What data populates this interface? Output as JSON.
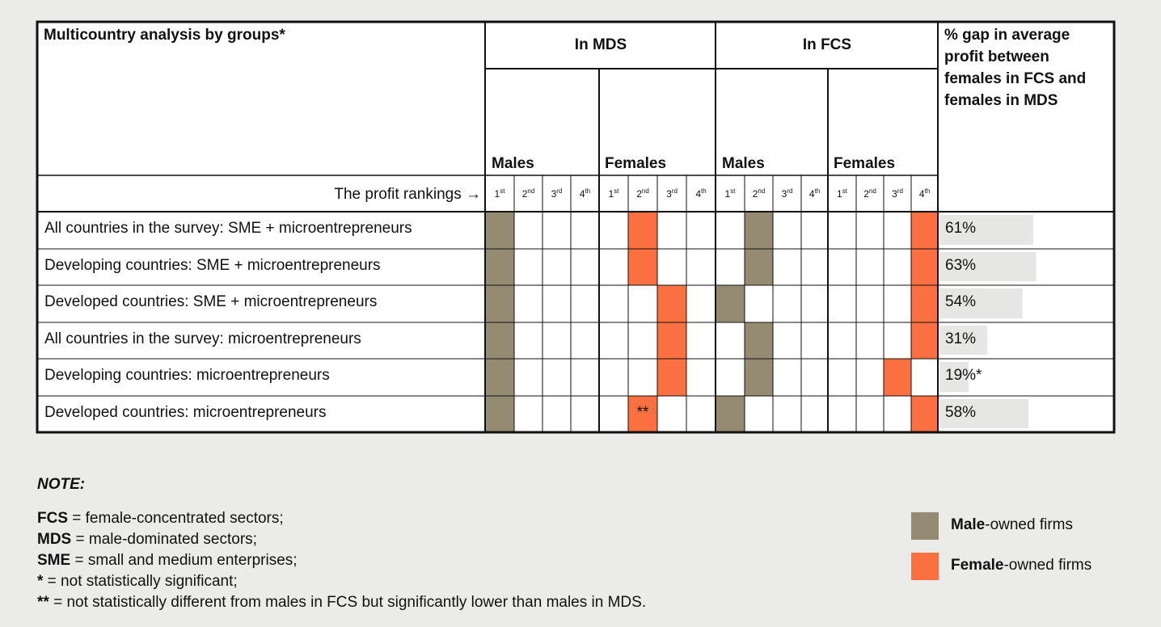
{
  "header": {
    "title": "Multicountry analysis by groups*",
    "in_mds": "In MDS",
    "in_fcs": "In FCS",
    "gap": [
      "% gap in average",
      "profit between",
      "females in FCS and",
      "females in MDS"
    ],
    "males": "Males",
    "females": "Females",
    "profit_rankings": "The profit rankings →",
    "ranks": [
      [
        "1",
        "st"
      ],
      [
        "2",
        "nd"
      ],
      [
        "3",
        "rd"
      ],
      [
        "4",
        "th"
      ]
    ]
  },
  "colors": {
    "male": "#958b73",
    "female": "#fa7040",
    "bar": "#e6e6e5",
    "line": "#111111"
  },
  "rows": [
    {
      "label": "All countries in the survey: SME + microentrepreneurs",
      "mds_m": 1,
      "mds_f": 2,
      "fcs_m": 2,
      "fcs_f": 4,
      "gap_value": 61,
      "gap_text": "61%",
      "note": ""
    },
    {
      "label": "Developing countries: SME + microentrepreneurs",
      "mds_m": 1,
      "mds_f": 2,
      "fcs_m": 2,
      "fcs_f": 4,
      "gap_value": 63,
      "gap_text": "63%",
      "note": ""
    },
    {
      "label": "Developed countries: SME + microentrepreneurs",
      "mds_m": 1,
      "mds_f": 3,
      "fcs_m": 1,
      "fcs_f": 4,
      "gap_value": 54,
      "gap_text": "54%",
      "note": ""
    },
    {
      "label": "All countries in the survey: microentrepreneurs",
      "mds_m": 1,
      "mds_f": 3,
      "fcs_m": 2,
      "fcs_f": 4,
      "gap_value": 31,
      "gap_text": "31%",
      "note": ""
    },
    {
      "label": "Developing countries: microentrepreneurs",
      "mds_m": 1,
      "mds_f": 3,
      "fcs_m": 2,
      "fcs_f": 3,
      "gap_value": 19,
      "gap_text": "19%*",
      "note": ""
    },
    {
      "label": "Developed countries: microentrepreneurs",
      "mds_m": 1,
      "mds_f": 2,
      "fcs_m": 1,
      "fcs_f": 4,
      "gap_value": 58,
      "gap_text": "58%",
      "note": "**"
    }
  ],
  "notes": {
    "title": "NOTE:",
    "lines": [
      {
        "key": "FCS",
        "text": " = female-concentrated sectors;"
      },
      {
        "key": "MDS",
        "text": " = male-dominated sectors;"
      },
      {
        "key": "SME",
        "text": " = small and medium enterprises;"
      },
      {
        "key": "*",
        "text": " = not statistically significant;"
      },
      {
        "key": "**",
        "text": " = not statistically different from males in FCS but significantly lower than males in MDS."
      }
    ]
  },
  "legend": [
    {
      "bold": "Male",
      "rest": "-owned firms",
      "color": "#958b73"
    },
    {
      "bold": "Female",
      "rest": "-owned firms",
      "color": "#fa7040"
    }
  ]
}
